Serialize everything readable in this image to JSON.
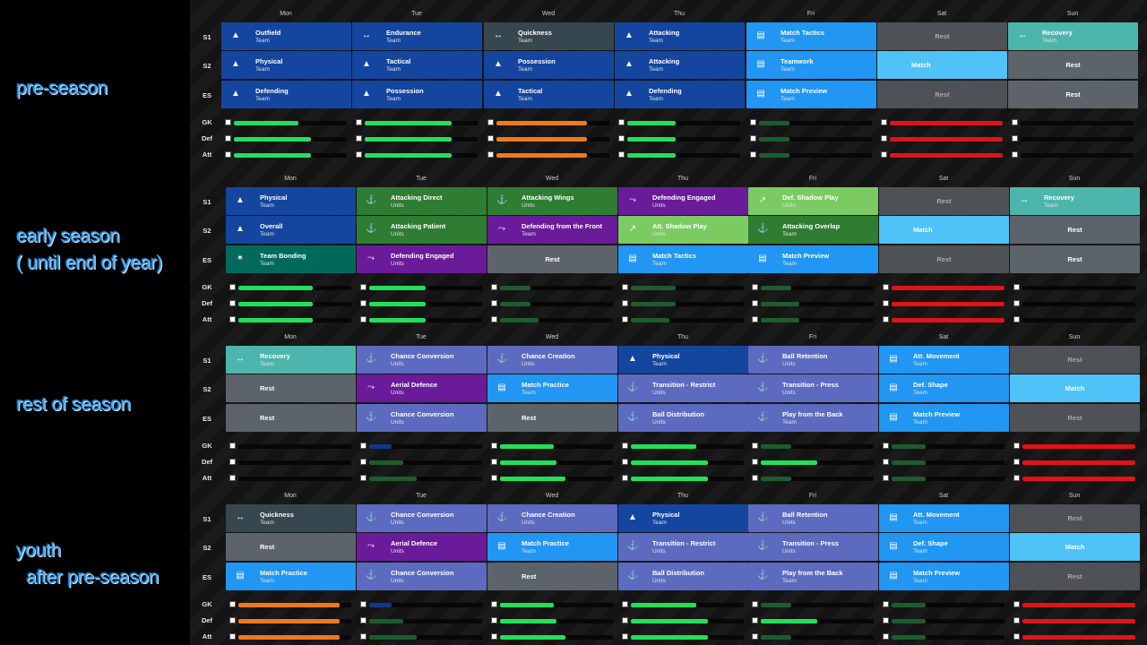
{
  "days": [
    "Mon",
    "Tue",
    "Wed",
    "Thu",
    "Fri",
    "Sat",
    "Sun"
  ],
  "slots": [
    "S1",
    "S2",
    "ES"
  ],
  "loadRows": [
    "GK",
    "Def",
    "Att"
  ],
  "colors": {
    "navy": "#1446a0",
    "sky": "#2196f3",
    "lightsky": "#4fc3f7",
    "slate": "#37474f",
    "grey": "#5c636b",
    "greydim": "#4e5257",
    "teal": "#4db6ac",
    "darkteal": "#00695c",
    "green": "#2e7d32",
    "lightgreen": "#7ccb62",
    "purple": "#6a1b9a",
    "periwinkle": "#5c6bc0",
    "barGreen": "#22e05a",
    "barDarkGreen": "#1e5c2f",
    "barOrange": "#f0781e",
    "barRed": "#e0131a",
    "barNavy": "#0f3a8c"
  },
  "sections": [
    {
      "label": "pre-season",
      "grid": [
        [
          {
            "name": "Outfield",
            "sub": "Team",
            "color": "navy",
            "icon": "cone-icon"
          },
          {
            "name": "Endurance",
            "sub": "Team",
            "color": "navy",
            "icon": "arrows-icon"
          },
          {
            "name": "Quickness",
            "sub": "Team",
            "color": "slate",
            "icon": "arrows-icon"
          },
          {
            "name": "Attacking",
            "sub": "Team",
            "color": "navy",
            "icon": "cone-icon"
          },
          {
            "name": "Match Tactics",
            "sub": "Team",
            "color": "sky",
            "icon": "tactics-board-icon"
          },
          {
            "name": "Rest",
            "sub": "",
            "color": "greydim",
            "type": "dim"
          },
          {
            "name": "Recovery",
            "sub": "Team",
            "color": "teal",
            "icon": "arrows-icon"
          }
        ],
        [
          {
            "name": "Physical",
            "sub": "Team",
            "color": "navy",
            "icon": "cone-icon"
          },
          {
            "name": "Tactical",
            "sub": "Team",
            "color": "navy",
            "icon": "cone-icon"
          },
          {
            "name": "Possession",
            "sub": "Team",
            "color": "navy",
            "icon": "cone-icon"
          },
          {
            "name": "Attacking",
            "sub": "Team",
            "color": "navy",
            "icon": "cone-icon"
          },
          {
            "name": "Teamwork",
            "sub": "Team",
            "color": "sky",
            "icon": "tactics-board-icon"
          },
          {
            "name": "Match",
            "sub": "",
            "color": "lightsky",
            "type": "left"
          },
          {
            "name": "Rest",
            "sub": "",
            "color": "grey",
            "type": "plain"
          }
        ],
        [
          {
            "name": "Defending",
            "sub": "Team",
            "color": "navy",
            "icon": "cone-icon"
          },
          {
            "name": "Possession",
            "sub": "Team",
            "color": "navy",
            "icon": "cone-icon"
          },
          {
            "name": "Tactical",
            "sub": "Team",
            "color": "navy",
            "icon": "cone-icon"
          },
          {
            "name": "Defending",
            "sub": "Team",
            "color": "navy",
            "icon": "cone-icon"
          },
          {
            "name": "Match Preview",
            "sub": "Team",
            "color": "sky",
            "icon": "tactics-board-icon"
          },
          {
            "name": "Rest",
            "sub": "",
            "color": "greydim",
            "type": "dim"
          },
          {
            "name": "Rest",
            "sub": "",
            "color": "grey",
            "type": "plain"
          }
        ]
      ],
      "load": [
        [
          [
            0.57,
            "barGreen"
          ],
          [
            0.77,
            "barGreen"
          ],
          [
            0.8,
            "barOrange"
          ],
          [
            0.43,
            "barGreen"
          ],
          [
            0.27,
            "barDarkGreen"
          ],
          [
            1.0,
            "barRed"
          ],
          [
            0,
            "barGreen"
          ]
        ],
        [
          [
            0.68,
            "barGreen"
          ],
          [
            0.77,
            "barGreen"
          ],
          [
            0.8,
            "barOrange"
          ],
          [
            0.43,
            "barGreen"
          ],
          [
            0.27,
            "barDarkGreen"
          ],
          [
            1.0,
            "barRed"
          ],
          [
            0,
            "barGreen"
          ]
        ],
        [
          [
            0.68,
            "barGreen"
          ],
          [
            0.77,
            "barGreen"
          ],
          [
            0.8,
            "barOrange"
          ],
          [
            0.43,
            "barGreen"
          ],
          [
            0.27,
            "barDarkGreen"
          ],
          [
            1.0,
            "barRed"
          ],
          [
            0,
            "barGreen"
          ]
        ]
      ]
    },
    {
      "label": "early season\n( until end of year)",
      "grid": [
        [
          {
            "name": "Physical",
            "sub": "Team",
            "color": "navy",
            "icon": "cone-icon"
          },
          {
            "name": "Attacking Direct",
            "sub": "Units",
            "color": "green",
            "icon": "runner-icon"
          },
          {
            "name": "Attacking Wings",
            "sub": "Units",
            "color": "green",
            "icon": "runner-icon"
          },
          {
            "name": "Defending Engaged",
            "sub": "Units",
            "color": "purple",
            "icon": "slide-tackle-icon"
          },
          {
            "name": "Def. Shadow Play",
            "sub": "Units",
            "color": "lightgreen",
            "icon": "shadow-play-icon"
          },
          {
            "name": "Rest",
            "sub": "",
            "color": "greydim",
            "type": "dim"
          },
          {
            "name": "Recovery",
            "sub": "Team",
            "color": "teal",
            "icon": "arrows-icon"
          }
        ],
        [
          {
            "name": "Overall",
            "sub": "Team",
            "color": "navy",
            "icon": "cone-icon"
          },
          {
            "name": "Attacking Patient",
            "sub": "Units",
            "color": "green",
            "icon": "runner-icon"
          },
          {
            "name": "Defending from the Front",
            "sub": "Team",
            "color": "purple",
            "icon": "slide-tackle-icon"
          },
          {
            "name": "Att. Shadow Play",
            "sub": "Units",
            "color": "lightgreen",
            "icon": "shadow-play-icon"
          },
          {
            "name": "Attacking Overlap",
            "sub": "Team",
            "color": "green",
            "icon": "runner-icon"
          },
          {
            "name": "Match",
            "sub": "",
            "color": "lightsky",
            "type": "left"
          },
          {
            "name": "Rest",
            "sub": "",
            "color": "grey",
            "type": "plain"
          }
        ],
        [
          {
            "name": "Team Bonding",
            "sub": "Team",
            "color": "darkteal",
            "icon": "bonding-icon"
          },
          {
            "name": "Defending Engaged",
            "sub": "Units",
            "color": "purple",
            "icon": "slide-tackle-icon"
          },
          {
            "name": "Rest",
            "sub": "",
            "color": "grey",
            "type": "plain"
          },
          {
            "name": "Match Tactics",
            "sub": "Team",
            "color": "sky",
            "icon": "tactics-board-icon"
          },
          {
            "name": "Match Preview",
            "sub": "Team",
            "color": "sky",
            "icon": "tactics-board-icon"
          },
          {
            "name": "Rest",
            "sub": "",
            "color": "greydim",
            "type": "dim"
          },
          {
            "name": "Rest",
            "sub": "",
            "color": "grey",
            "type": "plain"
          }
        ]
      ],
      "load": [
        [
          [
            0.66,
            "barGreen"
          ],
          [
            0.5,
            "barGreen"
          ],
          [
            0.27,
            "barDarkGreen"
          ],
          [
            0.4,
            "barDarkGreen"
          ],
          [
            0.27,
            "barDarkGreen"
          ],
          [
            1.0,
            "barRed"
          ],
          [
            0,
            "barGreen"
          ]
        ],
        [
          [
            0.66,
            "barGreen"
          ],
          [
            0.5,
            "barGreen"
          ],
          [
            0.27,
            "barDarkGreen"
          ],
          [
            0.4,
            "barDarkGreen"
          ],
          [
            0.34,
            "barDarkGreen"
          ],
          [
            1.0,
            "barRed"
          ],
          [
            0,
            "barGreen"
          ]
        ],
        [
          [
            0.66,
            "barGreen"
          ],
          [
            0.5,
            "barGreen"
          ],
          [
            0.34,
            "barDarkGreen"
          ],
          [
            0.34,
            "barDarkGreen"
          ],
          [
            0.34,
            "barDarkGreen"
          ],
          [
            1.0,
            "barRed"
          ],
          [
            0,
            "barGreen"
          ]
        ]
      ]
    },
    {
      "label": "rest of season",
      "grid": [
        [
          {
            "name": "Recovery",
            "sub": "Team",
            "color": "teal",
            "icon": "arrows-icon"
          },
          {
            "name": "Chance Conversion",
            "sub": "Units",
            "color": "periwinkle",
            "icon": "runner-icon"
          },
          {
            "name": "Chance Creation",
            "sub": "Units",
            "color": "periwinkle",
            "icon": "runner-icon"
          },
          {
            "name": "Physical",
            "sub": "Team",
            "color": "navy",
            "icon": "cone-icon"
          },
          {
            "name": "Ball Retention",
            "sub": "Units",
            "color": "periwinkle",
            "icon": "runner-icon"
          },
          {
            "name": "Att. Movement",
            "sub": "Team",
            "color": "sky",
            "icon": "tactics-board-icon"
          },
          {
            "name": "Rest",
            "sub": "",
            "color": "greydim",
            "type": "dim"
          }
        ],
        [
          {
            "name": "Rest",
            "sub": "",
            "color": "grey",
            "type": "left"
          },
          {
            "name": "Aerial Defence",
            "sub": "Units",
            "color": "purple",
            "icon": "slide-tackle-icon"
          },
          {
            "name": "Match Practice",
            "sub": "Team",
            "color": "sky",
            "icon": "tactics-board-icon"
          },
          {
            "name": "Transition - Restrict",
            "sub": "Units",
            "color": "periwinkle",
            "icon": "runner-icon"
          },
          {
            "name": "Transition - Press",
            "sub": "Units",
            "color": "periwinkle",
            "icon": "runner-icon"
          },
          {
            "name": "Def. Shape",
            "sub": "Team",
            "color": "sky",
            "icon": "tactics-board-icon"
          },
          {
            "name": "Match",
            "sub": "",
            "color": "lightsky",
            "type": "plain"
          }
        ],
        [
          {
            "name": "Rest",
            "sub": "",
            "color": "grey",
            "type": "left"
          },
          {
            "name": "Chance Conversion",
            "sub": "Units",
            "color": "periwinkle",
            "icon": "runner-icon"
          },
          {
            "name": "Rest",
            "sub": "",
            "color": "grey",
            "type": "left"
          },
          {
            "name": "Ball Distribution",
            "sub": "Units",
            "color": "periwinkle",
            "icon": "runner-icon"
          },
          {
            "name": "Play from the Back",
            "sub": "Team",
            "color": "periwinkle",
            "icon": "runner-icon"
          },
          {
            "name": "Match Preview",
            "sub": "Team",
            "color": "sky",
            "icon": "tactics-board-icon"
          },
          {
            "name": "Rest",
            "sub": "",
            "color": "greydim",
            "type": "dim"
          }
        ]
      ],
      "load": [
        [
          [
            0,
            "barGreen"
          ],
          [
            0.2,
            "barNavy"
          ],
          [
            0.48,
            "barGreen"
          ],
          [
            0.58,
            "barGreen"
          ],
          [
            0.27,
            "barDarkGreen"
          ],
          [
            0.3,
            "barDarkGreen"
          ],
          [
            1.0,
            "barRed"
          ]
        ],
        [
          [
            0,
            "barGreen"
          ],
          [
            0.3,
            "barDarkGreen"
          ],
          [
            0.5,
            "barGreen"
          ],
          [
            0.68,
            "barGreen"
          ],
          [
            0.5,
            "barGreen"
          ],
          [
            0.3,
            "barDarkGreen"
          ],
          [
            1.0,
            "barRed"
          ]
        ],
        [
          [
            0,
            "barGreen"
          ],
          [
            0.42,
            "barDarkGreen"
          ],
          [
            0.58,
            "barGreen"
          ],
          [
            0.68,
            "barGreen"
          ],
          [
            0.27,
            "barDarkGreen"
          ],
          [
            0.3,
            "barDarkGreen"
          ],
          [
            1.0,
            "barRed"
          ]
        ]
      ]
    },
    {
      "label": "youth\n  after pre-season",
      "grid": [
        [
          {
            "name": "Quickness",
            "sub": "Team",
            "color": "slate",
            "icon": "arrows-icon"
          },
          {
            "name": "Chance Conversion",
            "sub": "Units",
            "color": "periwinkle",
            "icon": "runner-icon"
          },
          {
            "name": "Chance Creation",
            "sub": "Units",
            "color": "periwinkle",
            "icon": "runner-icon"
          },
          {
            "name": "Physical",
            "sub": "Team",
            "color": "navy",
            "icon": "cone-icon"
          },
          {
            "name": "Ball Retention",
            "sub": "Units",
            "color": "periwinkle",
            "icon": "runner-icon"
          },
          {
            "name": "Att. Movement",
            "sub": "Team",
            "color": "sky",
            "icon": "tactics-board-icon"
          },
          {
            "name": "Rest",
            "sub": "",
            "color": "greydim",
            "type": "dim"
          }
        ],
        [
          {
            "name": "Rest",
            "sub": "",
            "color": "grey",
            "type": "left"
          },
          {
            "name": "Aerial Defence",
            "sub": "Units",
            "color": "purple",
            "icon": "slide-tackle-icon"
          },
          {
            "name": "Match Practice",
            "sub": "Team",
            "color": "sky",
            "icon": "tactics-board-icon"
          },
          {
            "name": "Transition - Restrict",
            "sub": "Units",
            "color": "periwinkle",
            "icon": "runner-icon"
          },
          {
            "name": "Transition - Press",
            "sub": "Units",
            "color": "periwinkle",
            "icon": "runner-icon"
          },
          {
            "name": "Def. Shape",
            "sub": "Team",
            "color": "sky",
            "icon": "tactics-board-icon"
          },
          {
            "name": "Match",
            "sub": "",
            "color": "lightsky",
            "type": "plain"
          }
        ],
        [
          {
            "name": "Match Practice",
            "sub": "Team",
            "color": "sky",
            "icon": "tactics-board-icon"
          },
          {
            "name": "Chance Conversion",
            "sub": "Units",
            "color": "periwinkle",
            "icon": "runner-icon"
          },
          {
            "name": "Rest",
            "sub": "",
            "color": "grey",
            "type": "left"
          },
          {
            "name": "Ball Distribution",
            "sub": "Units",
            "color": "periwinkle",
            "icon": "runner-icon"
          },
          {
            "name": "Play from the Back",
            "sub": "Team",
            "color": "periwinkle",
            "icon": "runner-icon"
          },
          {
            "name": "Match Preview",
            "sub": "Team",
            "color": "sky",
            "icon": "tactics-board-icon"
          },
          {
            "name": "Rest",
            "sub": "",
            "color": "greydim",
            "type": "dim"
          }
        ]
      ],
      "load": [
        [
          [
            0.9,
            "barOrange"
          ],
          [
            0.2,
            "barNavy"
          ],
          [
            0.48,
            "barGreen"
          ],
          [
            0.58,
            "barGreen"
          ],
          [
            0.27,
            "barDarkGreen"
          ],
          [
            0.3,
            "barDarkGreen"
          ],
          [
            1.0,
            "barRed"
          ]
        ],
        [
          [
            0.9,
            "barOrange"
          ],
          [
            0.3,
            "barDarkGreen"
          ],
          [
            0.5,
            "barGreen"
          ],
          [
            0.68,
            "barGreen"
          ],
          [
            0.5,
            "barGreen"
          ],
          [
            0.3,
            "barDarkGreen"
          ],
          [
            1.0,
            "barRed"
          ]
        ],
        [
          [
            0.9,
            "barOrange"
          ],
          [
            0.42,
            "barDarkGreen"
          ],
          [
            0.58,
            "barGreen"
          ],
          [
            0.68,
            "barGreen"
          ],
          [
            0.27,
            "barDarkGreen"
          ],
          [
            0.3,
            "barDarkGreen"
          ],
          [
            1.0,
            "barRed"
          ]
        ]
      ]
    }
  ]
}
